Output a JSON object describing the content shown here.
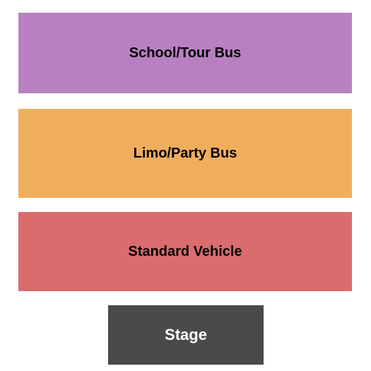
{
  "diagram": {
    "type": "seating-map",
    "background_color": "#ffffff",
    "sections": [
      {
        "label": "School/Tour Bus",
        "background_color": "#b880c1",
        "text_color": "#000000",
        "font_size": 20
      },
      {
        "label": "Limo/Party Bus",
        "background_color": "#f0ae5d",
        "text_color": "#000000",
        "font_size": 20
      },
      {
        "label": "Standard Vehicle",
        "background_color": "#da6c6d",
        "text_color": "#000000",
        "font_size": 20
      },
      {
        "label": "Stage",
        "background_color": "#4a4a4a",
        "text_color": "#ffffff",
        "font_size": 22
      }
    ]
  }
}
